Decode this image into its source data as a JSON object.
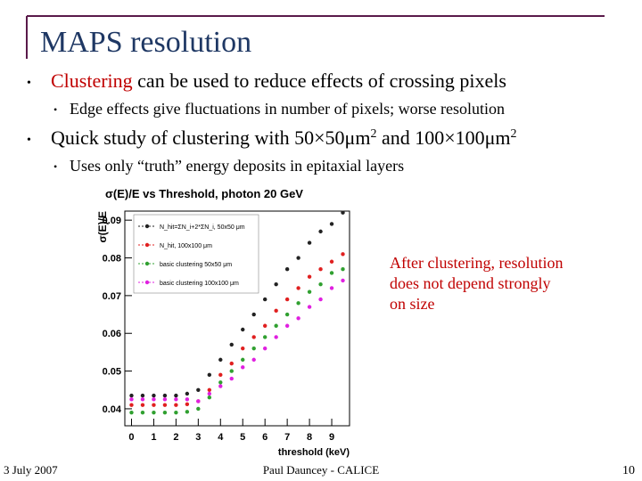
{
  "slide": {
    "title": "MAPS resolution",
    "bullets": [
      {
        "highlight": "Clustering",
        "text": " can be used to reduce effects of crossing pixels",
        "sub": "Edge effects give fluctuations in number of pixels; worse resolution"
      },
      {
        "parts": [
          "Quick study of clustering with 50×50μm",
          "2",
          " and 100×100μm",
          "2"
        ],
        "sub": "Uses only “truth” energy deposits in epitaxial layers"
      }
    ],
    "annotation": [
      "After clustering, resolution",
      "does not depend strongly",
      "on size"
    ],
    "footer": {
      "date": "3 July 2007",
      "author": "Paul Dauncey - CALICE",
      "page": "10"
    }
  },
  "chart_data": {
    "type": "scatter",
    "title": "σ(E)/E vs Threshold, photon 20 GeV",
    "x_label": "threshold (keV)",
    "y_label": "σ(E)/E",
    "x": [
      0,
      0.5,
      1,
      1.5,
      2,
      2.5,
      3,
      3.5,
      4,
      4.5,
      5,
      5.5,
      6,
      6.5,
      7,
      7.5,
      8,
      8.5,
      9,
      9.5
    ],
    "series": [
      {
        "name": "N_hit=ΣN_i+2*ΣN_i, 50x50 μm",
        "color": "#222222",
        "values": [
          0.0435,
          0.0435,
          0.0435,
          0.0435,
          0.0435,
          0.044,
          0.045,
          0.049,
          0.053,
          0.057,
          0.061,
          0.065,
          0.069,
          0.073,
          0.077,
          0.08,
          0.084,
          0.087,
          0.089,
          0.092
        ]
      },
      {
        "name": "N_hit, 100x100 μm",
        "color": "#e02020",
        "values": [
          0.041,
          0.041,
          0.041,
          0.041,
          0.041,
          0.0412,
          0.042,
          0.045,
          0.049,
          0.052,
          0.056,
          0.059,
          0.062,
          0.066,
          0.069,
          0.072,
          0.075,
          0.077,
          0.079,
          0.081
        ]
      },
      {
        "name": "basic clustering 50x50 μm",
        "color": "#30a030",
        "values": [
          0.039,
          0.039,
          0.039,
          0.039,
          0.039,
          0.0392,
          0.04,
          0.043,
          0.047,
          0.05,
          0.053,
          0.056,
          0.059,
          0.062,
          0.065,
          0.068,
          0.071,
          0.073,
          0.076,
          0.077
        ]
      },
      {
        "name": "basic clustering 100x100 μm",
        "color": "#e020e0",
        "values": [
          0.0425,
          0.0425,
          0.0425,
          0.0425,
          0.0425,
          0.0425,
          0.042,
          0.044,
          0.046,
          0.048,
          0.051,
          0.053,
          0.056,
          0.059,
          0.062,
          0.064,
          0.067,
          0.069,
          0.072,
          0.074
        ]
      }
    ],
    "xlim": [
      -0.3,
      9.8
    ],
    "ylim": [
      0.0355,
      0.0924
    ],
    "xticks": [
      0,
      1,
      2,
      3,
      4,
      5,
      6,
      7,
      8,
      9
    ],
    "yticks": [
      0.04,
      0.05,
      0.06,
      0.07,
      0.08,
      0.09
    ],
    "legend": "top-left"
  }
}
